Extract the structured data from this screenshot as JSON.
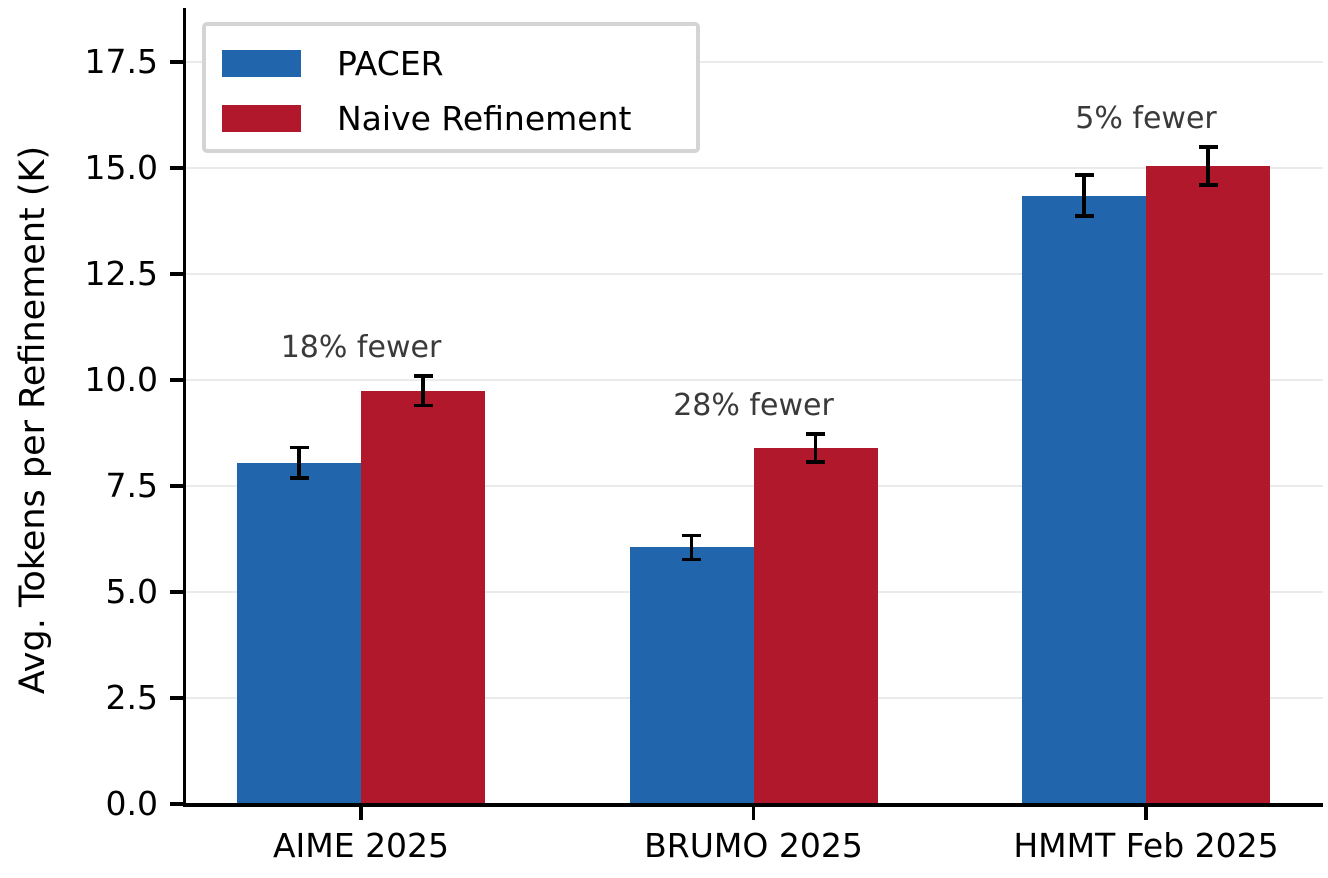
{
  "chart_data": {
    "type": "bar",
    "title": "",
    "xlabel": "",
    "ylabel": "Avg. Tokens per Refinement (K)",
    "categories": [
      "AIME 2025",
      "BRUMO 2025",
      "HMMT Feb 2025"
    ],
    "series": [
      {
        "name": "PACER",
        "color": "#2166ac",
        "values": [
          8.05,
          6.05,
          14.35
        ],
        "errors": [
          0.36,
          0.28,
          0.48
        ]
      },
      {
        "name": "Naive Refinement",
        "color": "#b2182b",
        "values": [
          9.75,
          8.4,
          15.05
        ],
        "errors": [
          0.35,
          0.33,
          0.45
        ]
      }
    ],
    "annotations": [
      {
        "category": "AIME 2025",
        "text": "18% fewer"
      },
      {
        "category": "BRUMO 2025",
        "text": "28% fewer"
      },
      {
        "category": "HMMT Feb 2025",
        "text": "5% fewer"
      }
    ],
    "y_ticks": [
      "0.0",
      "2.5",
      "5.0",
      "7.5",
      "10.0",
      "12.5",
      "15.0",
      "17.5"
    ],
    "ylim": [
      0,
      18.75
    ],
    "grid": true,
    "error_bars": true,
    "legend_position": "upper-left",
    "colors": {
      "gridline": "#ebebeb",
      "annotation_text": "#3a3a3a",
      "axis": "#000000",
      "legend_border": "#d4d4d4",
      "background": "#ffffff"
    }
  }
}
